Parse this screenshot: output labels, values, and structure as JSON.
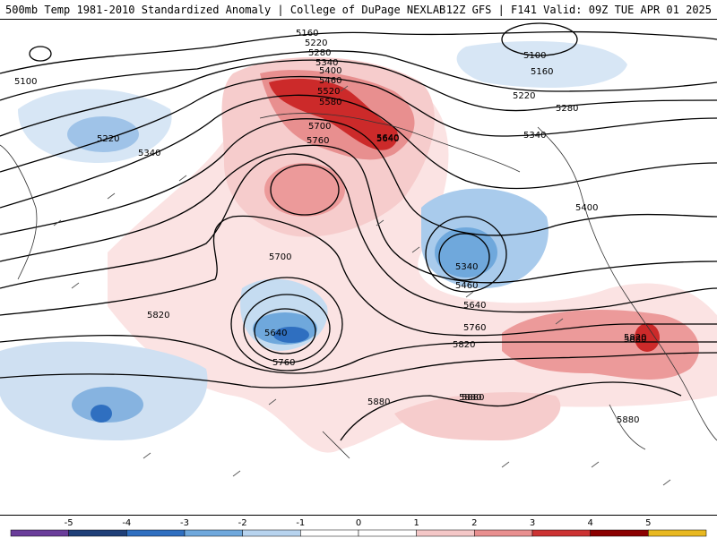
{
  "header": {
    "title_left": "500mb Temp 1981-2010 Standardized Anomaly | College of DuPage NEXLAB",
    "title_right": "12Z GFS | F141 Valid: 09Z TUE APR 01 2025"
  },
  "legend": {
    "ticks": [
      "-5",
      "-4",
      "-3",
      "-2",
      "-1",
      "0",
      "1",
      "2",
      "3",
      "4",
      "5"
    ],
    "colors": [
      "#6a3d9a",
      "#1f3f78",
      "#2f6fc0",
      "#6fa8dc",
      "#b7d3ee",
      "#ffffff",
      "#ffffff",
      "#f4c7c7",
      "#e88f8f",
      "#cc3333",
      "#8b0000",
      "#e8b820"
    ]
  },
  "contour_labels": [
    "5160",
    "5220",
    "5280",
    "5340",
    "5400",
    "5460",
    "5520",
    "5580",
    "5640",
    "5700",
    "5760",
    "5820",
    "5880",
    "5100",
    "5220",
    "5340",
    "5100",
    "5160",
    "5220",
    "5280",
    "5340",
    "5400",
    "5340",
    "5460",
    "5640",
    "5760",
    "5820",
    "5700",
    "5640",
    "5760",
    "5820",
    "5880",
    "5880",
    "5880",
    "5880",
    "5640"
  ],
  "colors": {
    "warm_light": "#f6d4d4",
    "warm_mid": "#ec9a9a",
    "warm_strong": "#cc2a2a",
    "cold_light": "#cfe0f2",
    "cold_mid": "#86b3e0",
    "cold_strong": "#2f6fc0"
  }
}
